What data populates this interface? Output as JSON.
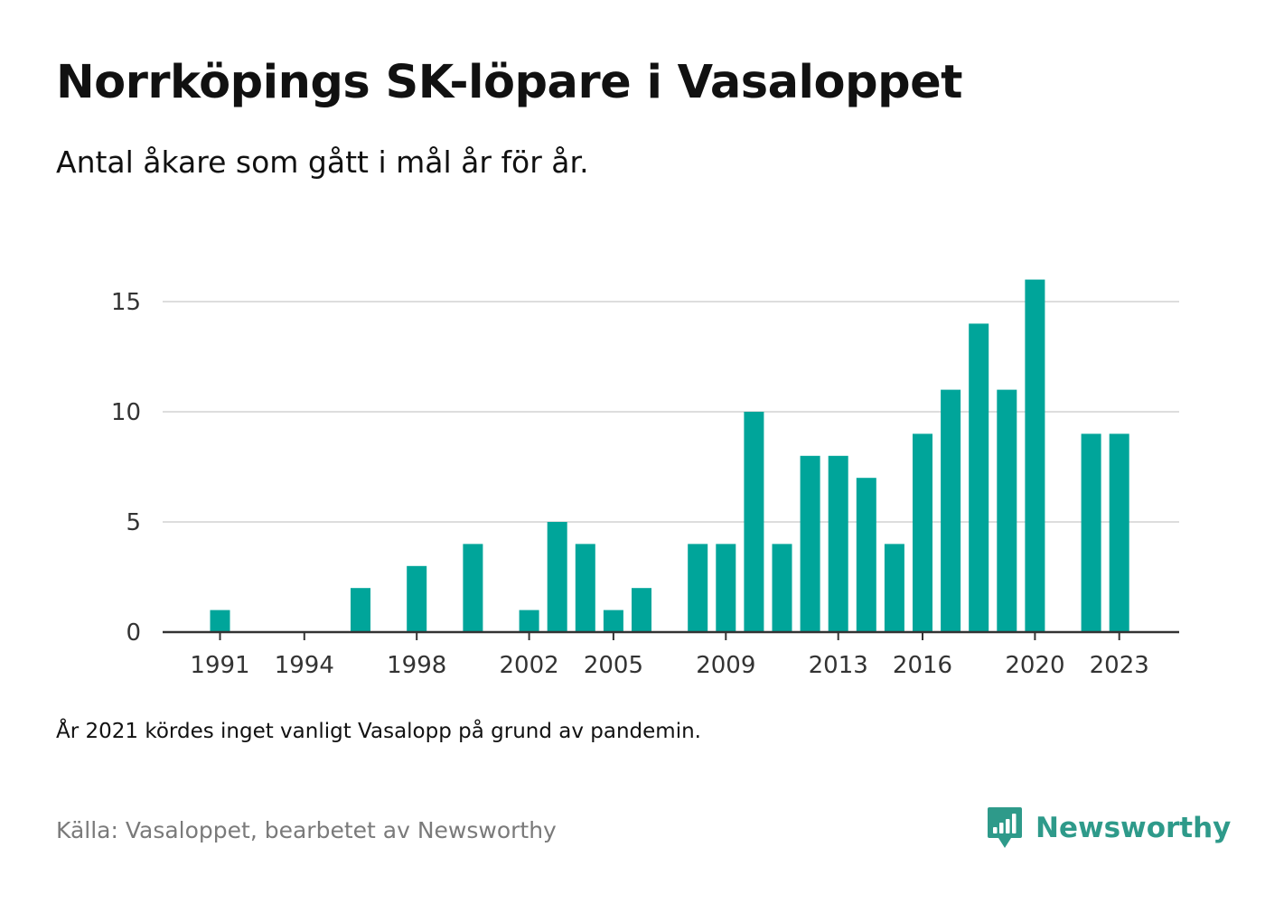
{
  "title": "Norrköpings SK-löpare i Vasaloppet",
  "subtitle": "Antal åkare som gått i mål år för år.",
  "note": "År 2021 kördes inget vanligt Vasalopp på grund av pandemin.",
  "source": "Källa: Vasaloppet, bearbetet av Newsworthy",
  "brand": {
    "name": "Newsworthy",
    "icon": "newsworthy-logo-icon",
    "color": "#2e9a8a"
  },
  "colors": {
    "bar": "#00a59a",
    "grid": "#dddddd",
    "axis": "#333333",
    "tick_text": "#333333"
  },
  "chart_data": {
    "type": "bar",
    "title": "Norrköpings SK-löpare i Vasaloppet",
    "subtitle": "Antal åkare som gått i mål år för år.",
    "xlabel": "",
    "ylabel": "",
    "ylim": [
      0,
      17
    ],
    "yticks": [
      0,
      5,
      10,
      15
    ],
    "xticks": [
      1991,
      1994,
      1998,
      2002,
      2005,
      2009,
      2013,
      2016,
      2020,
      2023
    ],
    "x_range": [
      1990,
      2024
    ],
    "grid": "horizontal",
    "legend": "none",
    "x": [
      1991,
      1992,
      1993,
      1994,
      1995,
      1996,
      1997,
      1998,
      1999,
      2000,
      2001,
      2002,
      2003,
      2004,
      2005,
      2006,
      2007,
      2008,
      2009,
      2010,
      2011,
      2012,
      2013,
      2014,
      2015,
      2016,
      2017,
      2018,
      2019,
      2020,
      2021,
      2022,
      2023
    ],
    "values": [
      1,
      0,
      0,
      0,
      0,
      2,
      0,
      3,
      0,
      4,
      0,
      1,
      5,
      4,
      1,
      2,
      0,
      4,
      4,
      10,
      4,
      8,
      8,
      7,
      4,
      9,
      11,
      14,
      11,
      16,
      0,
      9,
      9
    ]
  }
}
